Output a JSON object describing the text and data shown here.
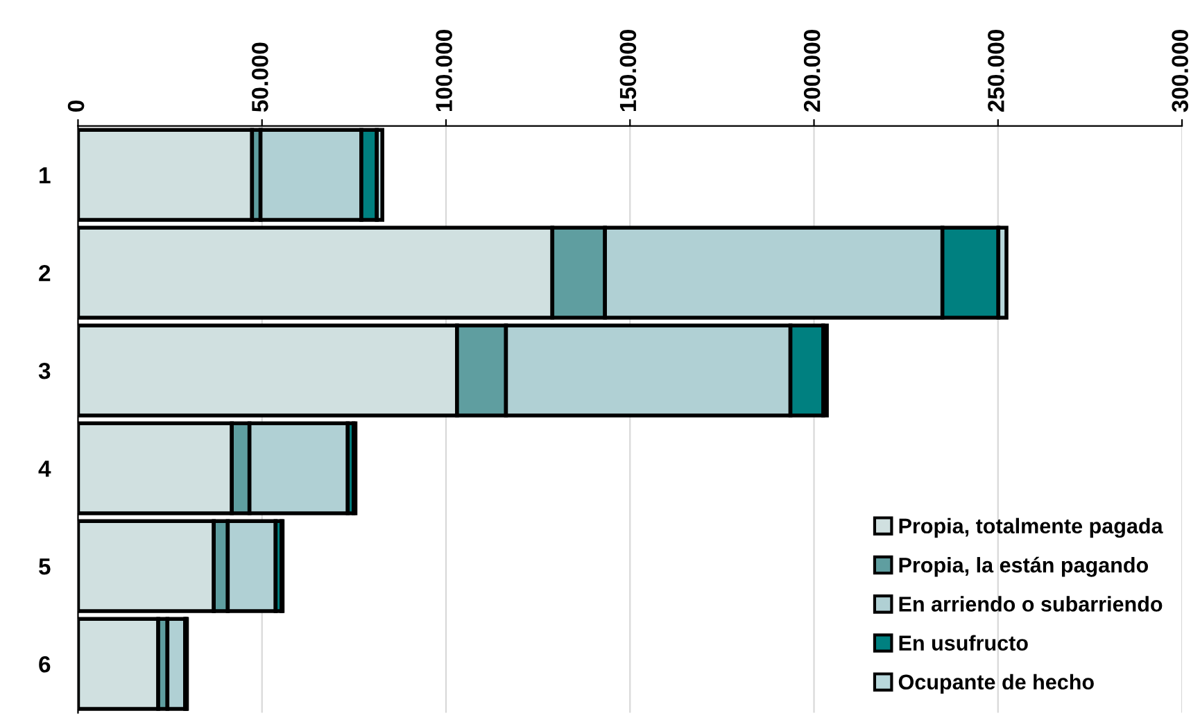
{
  "chart_data": {
    "type": "bar",
    "orientation": "horizontal",
    "stacked": true,
    "categories": [
      "1",
      "2",
      "3",
      "4",
      "5",
      "6"
    ],
    "series": [
      {
        "name": "Propia, totalmente pagada",
        "color": "#d0e0e0",
        "values": [
          47300,
          128900,
          103000,
          41800,
          36900,
          21800
        ]
      },
      {
        "name": "Propia, la están pagando",
        "color": "#5f9ea0",
        "values": [
          2300,
          14300,
          13300,
          4800,
          3800,
          2500
        ]
      },
      {
        "name": "En arriendo o subarriendo",
        "color": "#b0d0d4",
        "values": [
          27400,
          91700,
          77300,
          26700,
          13000,
          4800
        ]
      },
      {
        "name": "En usufructo",
        "color": "#008080",
        "values": [
          4200,
          15200,
          8900,
          1600,
          1600,
          300
        ]
      },
      {
        "name": "Ocupante de hecho",
        "color": "#b8d8dc",
        "values": [
          1500,
          2200,
          1000,
          500,
          300,
          200
        ]
      }
    ],
    "xlim": [
      0,
      300000
    ],
    "xticks": [
      0,
      {
        "value": 50000,
        "label": "50.000"
      },
      {
        "value": 100000,
        "label": "100.000"
      },
      {
        "value": 150000,
        "label": "150.000"
      },
      {
        "value": 200000,
        "label": "200.000"
      },
      {
        "value": 250000,
        "label": "250.000"
      },
      {
        "value": 300000,
        "label": "300.000"
      }
    ],
    "grid": "x",
    "legend": "bottom right"
  }
}
